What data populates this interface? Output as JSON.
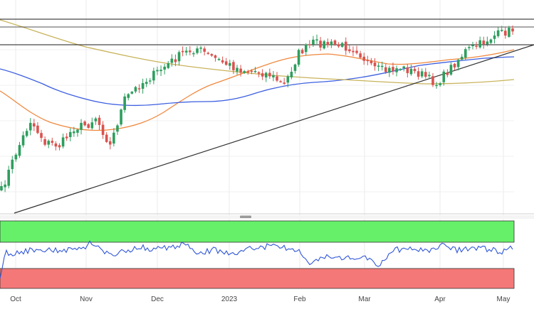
{
  "chart_data": [
    {
      "type": "candlestick",
      "panel": "price",
      "grid": true,
      "x_labels": [
        "Oct",
        "Nov",
        "Dec",
        "2023",
        "Feb",
        "Mar",
        "Apr",
        "May"
      ],
      "horizontal_levels": [
        "resistance-top",
        "resistance-mid",
        "resistance-low"
      ],
      "trendline": "ascending support from Oct low to May",
      "moving_averages": [
        {
          "id": "ma-fast",
          "color": "#f0883e"
        },
        {
          "id": "ma-mid",
          "color": "#3c5fe0"
        },
        {
          "id": "ma-slow",
          "color": "#c8b35a"
        }
      ],
      "colors": {
        "up": "#2e9e5e",
        "down": "#d9534f",
        "trendline": "#333333",
        "level": "#1a1a1a"
      }
    },
    {
      "type": "line",
      "panel": "oscillator",
      "zones": [
        {
          "id": "overbought",
          "color": "#66f06a"
        },
        {
          "id": "oversold",
          "color": "#f57878"
        }
      ],
      "line_color": "#2f56d6",
      "ylim": [
        0,
        100
      ]
    }
  ],
  "icons": {
    "panel_divider": "drag-handle-icon"
  }
}
